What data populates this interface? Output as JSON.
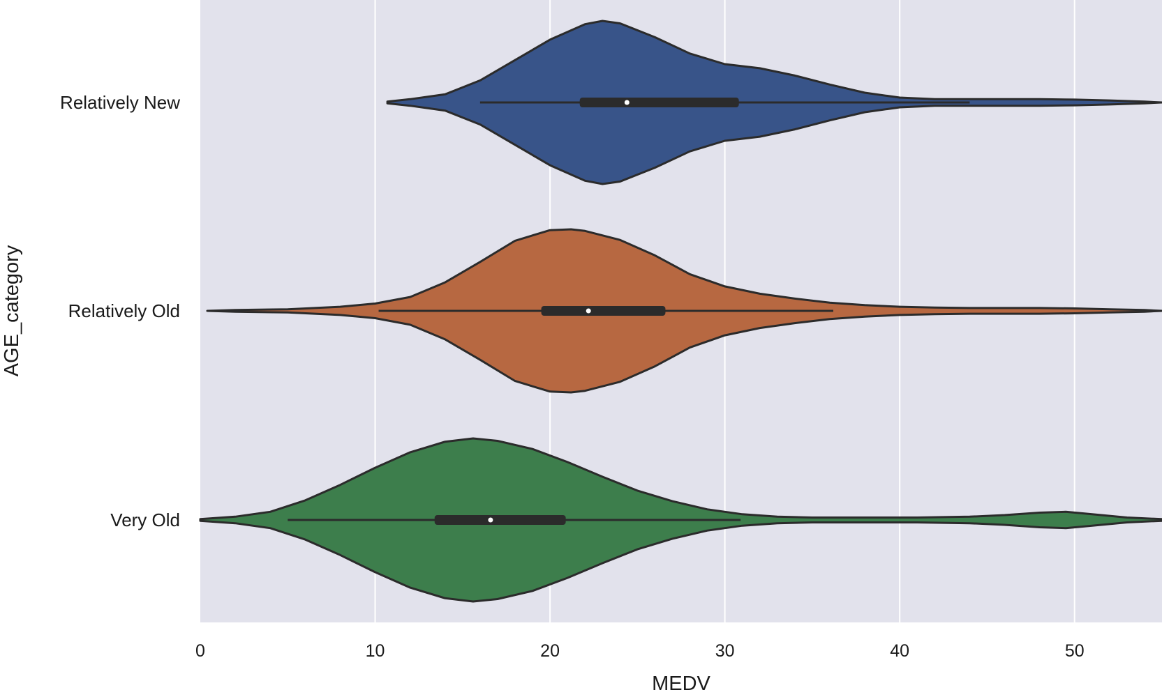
{
  "chart_data": {
    "type": "violin",
    "orientation": "horizontal",
    "xlabel": "MEDV",
    "ylabel": "AGE_category",
    "xlim": [
      0,
      55
    ],
    "xticks": [
      0,
      10,
      20,
      30,
      40,
      50
    ],
    "grid": true,
    "background": "#e2e2ec",
    "grid_color": "#ffffff",
    "edge_color": "#2b2b2b",
    "categories": [
      "Relatively New",
      "Relatively Old",
      "Very Old"
    ],
    "series": [
      {
        "category": "Relatively New",
        "color": "#385489",
        "min": 16.0,
        "q1": 21.7,
        "median": 24.4,
        "q3": 30.8,
        "max": 44.0,
        "kde_x": [
          10.7,
          12,
          14,
          16,
          18,
          20,
          22,
          23,
          24,
          26,
          28,
          30,
          32,
          34,
          36,
          38,
          40,
          42,
          44,
          46,
          48,
          50,
          52,
          54,
          55
        ],
        "kde_w": [
          0.01,
          0.04,
          0.1,
          0.27,
          0.52,
          0.77,
          0.96,
          1.0,
          0.97,
          0.8,
          0.6,
          0.47,
          0.42,
          0.33,
          0.22,
          0.12,
          0.06,
          0.04,
          0.04,
          0.04,
          0.04,
          0.035,
          0.025,
          0.01,
          0.0
        ]
      },
      {
        "category": "Relatively Old",
        "color": "#b76841",
        "min": 10.2,
        "q1": 19.5,
        "median": 22.2,
        "q3": 26.6,
        "max": 36.2,
        "kde_x": [
          0.4,
          2,
          5,
          8,
          10,
          12,
          14,
          16,
          18,
          20,
          21.2,
          22,
          24,
          26,
          28,
          30,
          32,
          34,
          36,
          38,
          40,
          42,
          44,
          46,
          48,
          50,
          52,
          54,
          55
        ],
        "kde_w": [
          0.0,
          0.01,
          0.02,
          0.05,
          0.09,
          0.17,
          0.35,
          0.6,
          0.86,
          0.99,
          1.0,
          0.98,
          0.87,
          0.68,
          0.45,
          0.3,
          0.21,
          0.15,
          0.1,
          0.07,
          0.05,
          0.04,
          0.035,
          0.035,
          0.035,
          0.03,
          0.02,
          0.01,
          0.0
        ]
      },
      {
        "category": "Very Old",
        "color": "#3d7e4c",
        "min": 5.0,
        "q1": 13.4,
        "median": 16.6,
        "q3": 20.9,
        "max": 30.9,
        "kde_x": [
          0,
          2,
          4,
          6,
          8,
          10,
          12,
          14,
          15.6,
          17,
          19,
          21,
          23,
          25,
          27,
          29,
          31,
          33,
          35,
          38,
          41,
          44,
          46,
          48,
          49.5,
          51,
          53,
          55
        ],
        "kde_w": [
          0.01,
          0.04,
          0.1,
          0.24,
          0.43,
          0.64,
          0.83,
          0.96,
          1.0,
          0.97,
          0.87,
          0.71,
          0.53,
          0.36,
          0.23,
          0.13,
          0.07,
          0.04,
          0.03,
          0.03,
          0.03,
          0.04,
          0.06,
          0.09,
          0.1,
          0.07,
          0.03,
          0.01
        ]
      }
    ]
  }
}
